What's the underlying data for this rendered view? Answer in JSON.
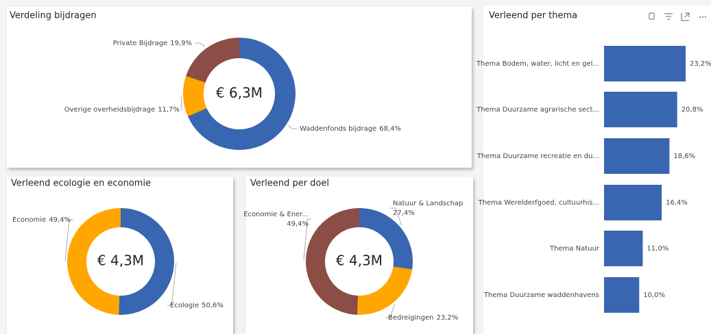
{
  "chart_data": [
    {
      "type": "donut",
      "title": "Verdeling bijdragen",
      "center_label": "€ 6,3M",
      "categories": [
        "Waddenfonds bijdrage",
        "Overige overheidsbijdrage",
        "Private Bijdrage"
      ],
      "values": [
        68.4,
        11.7,
        19.9
      ],
      "value_labels": [
        "68,4%",
        "11,7%",
        "19,9%"
      ],
      "colors": [
        "#3866b0",
        "#ffa600",
        "#8c4d46"
      ]
    },
    {
      "type": "donut",
      "title": "Verleend ecologie en economie",
      "center_label": "€ 4,3M",
      "categories": [
        "Ecologie",
        "Economie"
      ],
      "values": [
        50.6,
        49.4
      ],
      "value_labels": [
        "50,6%",
        "49,4%"
      ],
      "colors": [
        "#3866b0",
        "#ffa600"
      ]
    },
    {
      "type": "donut",
      "title": "Verleend per doel",
      "center_label": "€ 4,3M",
      "categories": [
        "Natuur & Landschap",
        "Bedreigingen",
        "Economie & Ener..."
      ],
      "values": [
        27.4,
        23.2,
        49.4
      ],
      "value_labels": [
        "27,4%",
        "23,2%",
        "49,4%"
      ],
      "colors": [
        "#3866b0",
        "#ffa600",
        "#8c4d46"
      ]
    },
    {
      "type": "barh",
      "title": "Verleend per thema",
      "categories": [
        "Thema Bodem, water, licht en gel...",
        "Thema Duurzame agrarische sect...",
        "Thema Duurzame recreatie en du...",
        "Thema Werelderfgoed, cultuurhis...",
        "Thema Natuur",
        "Thema Duurzame waddenhavens"
      ],
      "values": [
        23.2,
        20.8,
        18.6,
        16.4,
        11.0,
        10.0
      ],
      "value_labels": [
        "23,2%",
        "20,8%",
        "18,6%",
        "16,4%",
        "11,0%",
        "10,0%"
      ],
      "color": "#3866b0"
    }
  ]
}
